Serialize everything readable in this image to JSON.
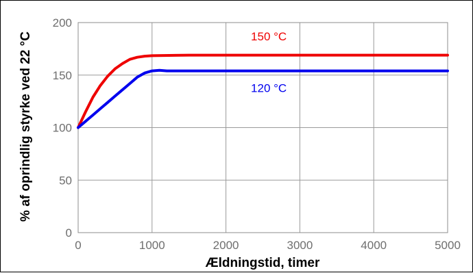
{
  "chart_data": {
    "type": "line",
    "xlabel": "Ældningstid, timer",
    "ylabel": "% af oprindlig styrke ved 22 °C",
    "xlim": [
      0,
      5000
    ],
    "ylim": [
      0,
      200
    ],
    "x_ticks": [
      0,
      1000,
      2000,
      3000,
      4000,
      5000
    ],
    "y_ticks": [
      0,
      50,
      100,
      150,
      200
    ],
    "x_tick_labels": [
      "0",
      "1000",
      "2000",
      "3000",
      "4000",
      "5000"
    ],
    "y_tick_labels": [
      "0",
      "50",
      "100",
      "150",
      "200"
    ],
    "grid": true,
    "series": [
      {
        "name": "150 °C",
        "color": "#ee0000",
        "x": [
          0,
          100,
          200,
          300,
          400,
          500,
          600,
          700,
          800,
          900,
          1000,
          1500,
          2000,
          3000,
          4000,
          5000
        ],
        "y": [
          100,
          115,
          129,
          140,
          149,
          156,
          161,
          165,
          167,
          168,
          168.5,
          169,
          169,
          169,
          169,
          169
        ]
      },
      {
        "name": "120 °C",
        "color": "#0000ee",
        "x": [
          0,
          100,
          200,
          300,
          400,
          500,
          600,
          700,
          800,
          900,
          1000,
          1100,
          1200,
          1500,
          2000,
          3000,
          4000,
          5000
        ],
        "y": [
          100,
          106,
          112,
          118,
          124,
          130,
          136,
          142,
          148,
          152,
          154,
          154.5,
          154,
          154,
          154,
          154,
          154,
          154
        ]
      }
    ]
  }
}
